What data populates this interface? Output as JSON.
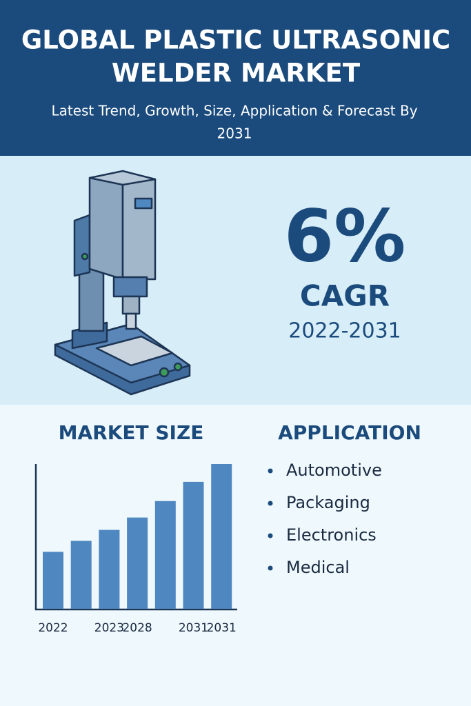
{
  "header": {
    "title": [
      "GLOBAL PLASTIC ULTRASONIC",
      "WELDER MARKET"
    ],
    "subtitle": [
      "Latest Trend, Growth, Size, Application & Forecast By",
      "2031"
    ]
  },
  "cagr": {
    "value": "6%",
    "label": "CAGR",
    "period": "2022-2031"
  },
  "chart_data": {
    "type": "bar",
    "title": "MARKET SIZE",
    "categories": [
      "2022",
      null,
      "2023",
      "2028",
      null,
      "2031",
      "2031"
    ],
    "values": [
      83,
      99,
      115,
      133,
      157,
      185,
      211
    ],
    "color": "#4f88c0",
    "ylim": [
      0,
      211
    ]
  },
  "application": {
    "title": "APPLICATION",
    "items": [
      "Automotive",
      "Packaging",
      "Electronics",
      "Medical"
    ]
  }
}
